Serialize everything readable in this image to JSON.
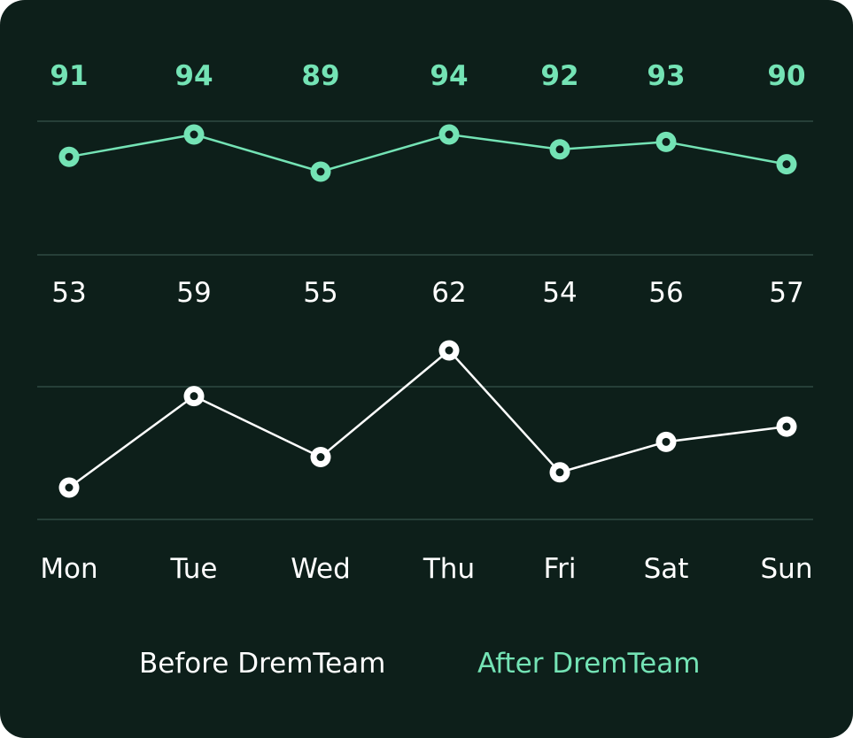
{
  "colors": {
    "background": "#0d1f1a",
    "after": "#74e3b5",
    "before": "#ffffff",
    "grid": "#2f4a42"
  },
  "chart_data": {
    "type": "line",
    "categories": [
      "Mon",
      "Tue",
      "Wed",
      "Thu",
      "Fri",
      "Sat",
      "Sun"
    ],
    "series": [
      {
        "name": "After DremTeam",
        "values": [
          91,
          94,
          89,
          94,
          92,
          93,
          90
        ]
      },
      {
        "name": "Before DremTeam",
        "values": [
          53,
          59,
          55,
          62,
          54,
          56,
          57
        ]
      }
    ],
    "grid": true,
    "legend": "bottom"
  },
  "legend": {
    "before_label": "Before DremTeam",
    "after_label": "After DremTeam"
  }
}
